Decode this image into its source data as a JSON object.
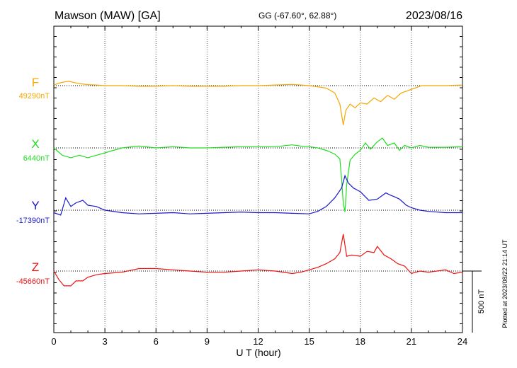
{
  "header": {
    "station": "Mawson (MAW)  [GA]",
    "coords": "GG (-67.60°,  62.88°)",
    "date": "2023/08/16"
  },
  "plotted_note": "Plotted at 2023/08/22 21:14 UT",
  "scale_label": "500 nT",
  "chart_data": {
    "type": "line",
    "xlabel": "U T (hour)",
    "xlim": [
      0,
      24
    ],
    "xticks": [
      0,
      3,
      6,
      9,
      12,
      15,
      18,
      21,
      24
    ],
    "grid": true,
    "series": [
      {
        "name": "F",
        "baseline_label": "49290nT",
        "color": "#f5a800",
        "points": [
          [
            0,
            5
          ],
          [
            0.3,
            20
          ],
          [
            0.6,
            30
          ],
          [
            0.9,
            35
          ],
          [
            1.2,
            25
          ],
          [
            1.6,
            15
          ],
          [
            2,
            8
          ],
          [
            2.5,
            5
          ],
          [
            3,
            0
          ],
          [
            4,
            0
          ],
          [
            5,
            -5
          ],
          [
            6,
            -5
          ],
          [
            7,
            0
          ],
          [
            8,
            -5
          ],
          [
            9,
            -5
          ],
          [
            10,
            -5
          ],
          [
            11,
            0
          ],
          [
            12,
            0
          ],
          [
            13,
            5
          ],
          [
            14,
            10
          ],
          [
            14.5,
            5
          ],
          [
            15,
            0
          ],
          [
            15.5,
            -10
          ],
          [
            16,
            -20
          ],
          [
            16.5,
            -60
          ],
          [
            16.8,
            -150
          ],
          [
            17.0,
            -320
          ],
          [
            17.15,
            -200
          ],
          [
            17.4,
            -150
          ],
          [
            17.7,
            -180
          ],
          [
            18,
            -140
          ],
          [
            18.4,
            -150
          ],
          [
            18.8,
            -100
          ],
          [
            19.2,
            -130
          ],
          [
            19.6,
            -80
          ],
          [
            20,
            -110
          ],
          [
            20.4,
            -60
          ],
          [
            20.8,
            -40
          ],
          [
            21.2,
            -20
          ],
          [
            21.6,
            0
          ],
          [
            22,
            0
          ],
          [
            23,
            0
          ],
          [
            24,
            5
          ]
        ]
      },
      {
        "name": "X",
        "baseline_label": "6440nT",
        "color": "#22dd22",
        "points": [
          [
            0,
            0
          ],
          [
            0.5,
            -60
          ],
          [
            1,
            -80
          ],
          [
            1.5,
            -60
          ],
          [
            2,
            -80
          ],
          [
            2.5,
            -60
          ],
          [
            3,
            -40
          ],
          [
            4,
            0
          ],
          [
            5,
            15
          ],
          [
            6,
            0
          ],
          [
            7,
            10
          ],
          [
            8,
            0
          ],
          [
            9,
            0
          ],
          [
            10,
            5
          ],
          [
            11,
            10
          ],
          [
            12,
            10
          ],
          [
            13,
            10
          ],
          [
            14,
            25
          ],
          [
            14.5,
            15
          ],
          [
            15,
            10
          ],
          [
            15.5,
            0
          ],
          [
            16,
            -20
          ],
          [
            16.5,
            -50
          ],
          [
            16.8,
            -90
          ],
          [
            16.9,
            -250
          ],
          [
            17.0,
            -450
          ],
          [
            17.1,
            -520
          ],
          [
            17.2,
            -300
          ],
          [
            17.4,
            -100
          ],
          [
            17.7,
            -50
          ],
          [
            18,
            -20
          ],
          [
            18.3,
            40
          ],
          [
            18.6,
            -10
          ],
          [
            19,
            50
          ],
          [
            19.3,
            80
          ],
          [
            19.6,
            20
          ],
          [
            20,
            40
          ],
          [
            20.3,
            -20
          ],
          [
            20.6,
            20
          ],
          [
            21,
            0
          ],
          [
            21.5,
            20
          ],
          [
            22,
            5
          ],
          [
            23,
            5
          ],
          [
            24,
            10
          ]
        ]
      },
      {
        "name": "Y",
        "baseline_label": "-17390nT",
        "color": "#1a1acc",
        "points": [
          [
            0,
            -20
          ],
          [
            0.4,
            -40
          ],
          [
            0.7,
            100
          ],
          [
            1,
            30
          ],
          [
            1.3,
            60
          ],
          [
            1.7,
            80
          ],
          [
            2,
            40
          ],
          [
            2.5,
            30
          ],
          [
            3,
            0
          ],
          [
            4,
            -20
          ],
          [
            5,
            -30
          ],
          [
            6,
            -25
          ],
          [
            7,
            -20
          ],
          [
            8,
            -30
          ],
          [
            9,
            -25
          ],
          [
            10,
            -20
          ],
          [
            11,
            -15
          ],
          [
            12,
            -20
          ],
          [
            13,
            -20
          ],
          [
            14,
            -25
          ],
          [
            15,
            -30
          ],
          [
            15.5,
            -10
          ],
          [
            16,
            30
          ],
          [
            16.5,
            100
          ],
          [
            16.9,
            180
          ],
          [
            17.1,
            280
          ],
          [
            17.3,
            220
          ],
          [
            17.6,
            180
          ],
          [
            18,
            150
          ],
          [
            18.5,
            80
          ],
          [
            19,
            90
          ],
          [
            19.5,
            140
          ],
          [
            19.8,
            120
          ],
          [
            20,
            110
          ],
          [
            20.3,
            90
          ],
          [
            20.7,
            40
          ],
          [
            21,
            20
          ],
          [
            21.5,
            0
          ],
          [
            22,
            -10
          ],
          [
            23,
            -20
          ],
          [
            24,
            -20
          ]
        ]
      },
      {
        "name": "Z",
        "baseline_label": "-45660nT",
        "color": "#ee1111",
        "points": [
          [
            0,
            0
          ],
          [
            0.3,
            -70
          ],
          [
            0.6,
            -120
          ],
          [
            1,
            -120
          ],
          [
            1.3,
            -80
          ],
          [
            1.7,
            -80
          ],
          [
            2,
            -50
          ],
          [
            2.5,
            -30
          ],
          [
            3,
            -20
          ],
          [
            4,
            -10
          ],
          [
            5,
            20
          ],
          [
            6,
            20
          ],
          [
            7,
            10
          ],
          [
            8,
            0
          ],
          [
            9,
            -10
          ],
          [
            10,
            -10
          ],
          [
            11,
            0
          ],
          [
            12,
            10
          ],
          [
            13,
            0
          ],
          [
            14,
            -20
          ],
          [
            14.5,
            -10
          ],
          [
            15,
            10
          ],
          [
            15.5,
            30
          ],
          [
            16,
            60
          ],
          [
            16.5,
            100
          ],
          [
            16.8,
            150
          ],
          [
            17.0,
            300
          ],
          [
            17.2,
            120
          ],
          [
            17.5,
            130
          ],
          [
            18,
            120
          ],
          [
            18.4,
            160
          ],
          [
            18.8,
            150
          ],
          [
            19,
            200
          ],
          [
            19.4,
            130
          ],
          [
            19.8,
            100
          ],
          [
            20.2,
            60
          ],
          [
            20.6,
            40
          ],
          [
            21,
            -20
          ],
          [
            21.5,
            0
          ],
          [
            22,
            -10
          ],
          [
            22.5,
            0
          ],
          [
            23,
            10
          ],
          [
            23.5,
            -20
          ],
          [
            24,
            -10
          ]
        ]
      }
    ]
  }
}
